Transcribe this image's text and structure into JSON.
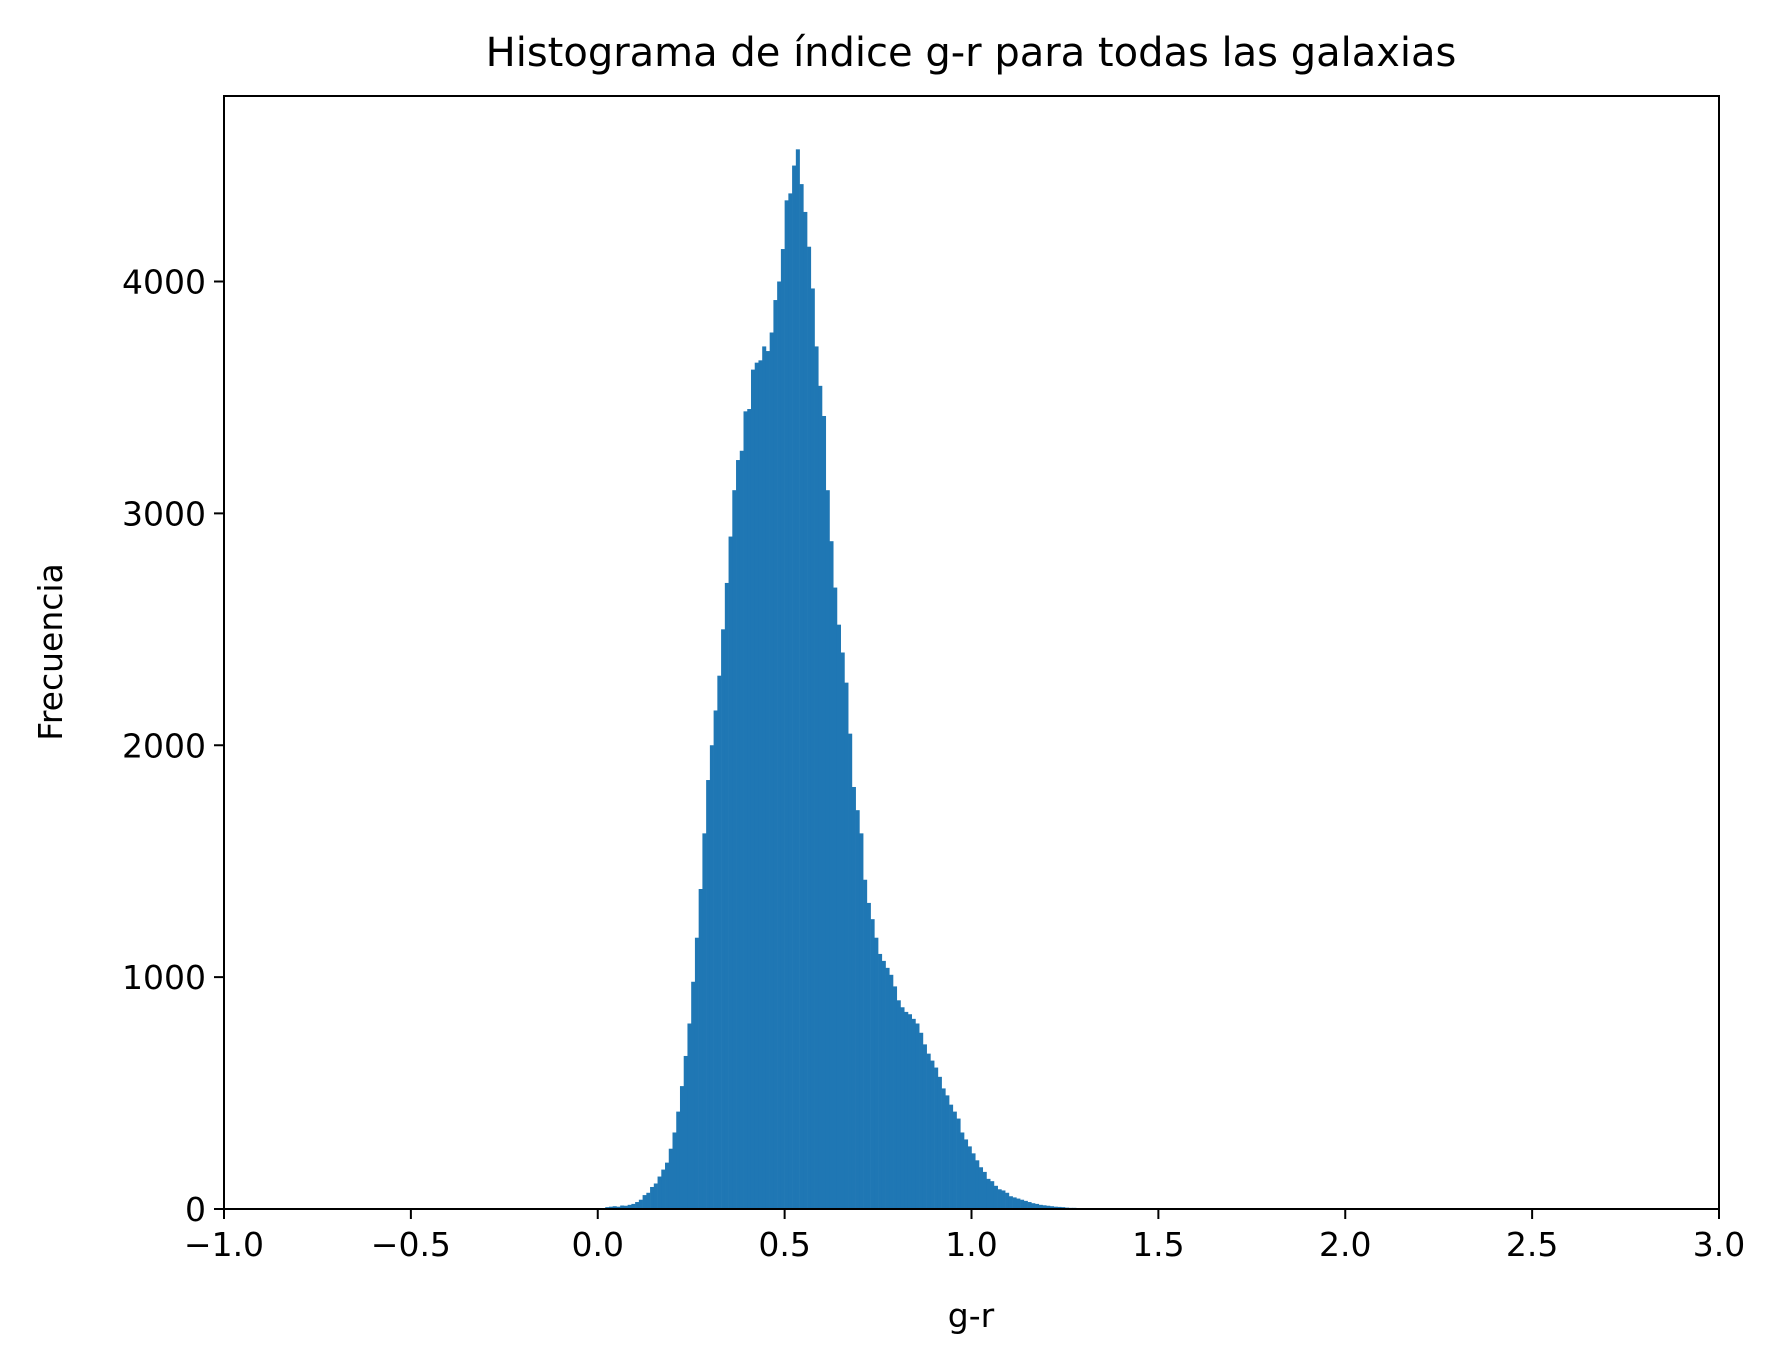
{
  "chart_data": {
    "type": "bar",
    "title": "Histograma de índice g-r para todas las galaxias",
    "xlabel": "g-r",
    "ylabel": "Frecuencia",
    "xlim": [
      -1.0,
      3.0
    ],
    "ylim": [
      0,
      4800
    ],
    "x_ticks": [
      -1.0,
      -0.5,
      0.0,
      0.5,
      1.0,
      1.5,
      2.0,
      2.5,
      3.0
    ],
    "x_tick_labels": [
      "−1.0",
      "−0.5",
      "0.0",
      "0.5",
      "1.0",
      "1.5",
      "2.0",
      "2.5",
      "3.0"
    ],
    "y_ticks": [
      0,
      1000,
      2000,
      3000,
      4000
    ],
    "y_tick_labels": [
      "0",
      "1000",
      "2000",
      "3000",
      "4000"
    ],
    "grid": false,
    "legend": "none",
    "bar_color": "#1f77b4",
    "histogram": {
      "bin_width": 0.01,
      "x_start": 0.02,
      "counts": [
        8,
        10,
        12,
        10,
        15,
        14,
        18,
        22,
        30,
        40,
        60,
        70,
        95,
        110,
        140,
        170,
        200,
        260,
        330,
        420,
        530,
        660,
        800,
        980,
        1170,
        1380,
        1620,
        1850,
        2000,
        2150,
        2300,
        2500,
        2700,
        2900,
        3100,
        3230,
        3270,
        3440,
        3450,
        3620,
        3650,
        3660,
        3720,
        3700,
        3780,
        3920,
        4000,
        4140,
        4350,
        4380,
        4500,
        4570,
        4420,
        4300,
        4150,
        3970,
        3720,
        3550,
        3420,
        3100,
        2880,
        2680,
        2520,
        2400,
        2270,
        2050,
        1820,
        1720,
        1620,
        1420,
        1320,
        1250,
        1170,
        1100,
        1070,
        1040,
        1010,
        960,
        900,
        870,
        850,
        840,
        820,
        800,
        760,
        710,
        670,
        640,
        610,
        570,
        520,
        490,
        450,
        420,
        390,
        330,
        300,
        270,
        240,
        210,
        180,
        160,
        130,
        120,
        100,
        85,
        80,
        70,
        55,
        50,
        45,
        40,
        35,
        30,
        25,
        22,
        18,
        16,
        14,
        12,
        10,
        9,
        8,
        6,
        5,
        5,
        4,
        3,
        2,
        2
      ]
    }
  }
}
